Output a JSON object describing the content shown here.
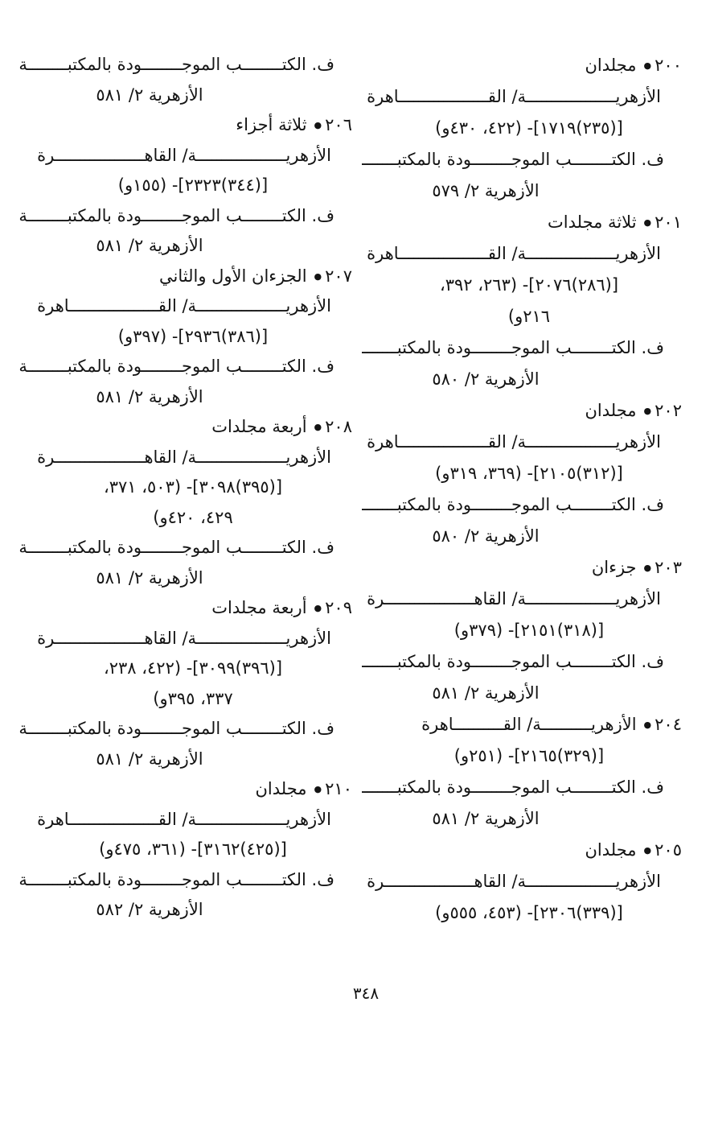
{
  "document": {
    "kind": "scanned-arabic-catalog-page",
    "page_number": "٣٤٨",
    "bullet": "●",
    "text_color": "#141414",
    "background_color": "#ffffff"
  },
  "columns": [
    {
      "id": "right",
      "entries": [
        {
          "number": "٢٠٠",
          "title": "مجلدان",
          "lines": [
            {
              "type": "src",
              "text": "الأزهريــــــــــــــــــة/ القــــــــــــــــــاهرة"
            },
            {
              "type": "ref",
              "text": "[(٢٣٥)١٧١٩]- (٤٢٢، ٤٣٠و)"
            },
            {
              "type": "fn",
              "text": "ف. الكتــــــــب الموجــــــــودة بالمكتبــــــــة"
            },
            {
              "type": "loc",
              "text": "الأزهرية ٢/ ٥٧٩"
            }
          ]
        },
        {
          "number": "٢٠١",
          "title": "ثلاثة مجلدات",
          "lines": [
            {
              "type": "src",
              "text": "الأزهريــــــــــــــــــة/ القــــــــــــــــــاهرة"
            },
            {
              "type": "ref",
              "text": "[(٢٨٦)٢٠٧٦]- (٢٦٣،   ٣٩٢،"
            },
            {
              "type": "ref",
              "text": "٢١٦و)"
            },
            {
              "type": "fn",
              "text": "ف. الكتــــــــب الموجــــــــودة بالمكتبــــــــة"
            },
            {
              "type": "loc",
              "text": "الأزهرية ٢/ ٥٨٠"
            }
          ]
        },
        {
          "number": "٢٠٢",
          "title": "مجلدان",
          "lines": [
            {
              "type": "src",
              "text": "الأزهريــــــــــــــــــة/ القــــــــــــــــــاهرة"
            },
            {
              "type": "ref",
              "text": "[(٣١٢)٢١٠٥]- (٣٦٩، ٣١٩و)"
            },
            {
              "type": "fn",
              "text": "ف. الكتــــــــب الموجــــــــودة بالمكتبــــــــة"
            },
            {
              "type": "loc",
              "text": "الأزهرية ٢/ ٥٨٠"
            }
          ]
        },
        {
          "number": "٢٠٣",
          "title": "جزءان",
          "lines": [
            {
              "type": "src",
              "text": "الأزهريــــــــــــــــــة/ القاهــــــــــــــــــرة"
            },
            {
              "type": "ref",
              "text": "[(٣١٨)٢١٥١]- (٣٧٩و)"
            },
            {
              "type": "fn",
              "text": "ف. الكتــــــــب الموجــــــــودة بالمكتبــــــــة"
            },
            {
              "type": "loc",
              "text": "الأزهرية ٢/ ٥٨١"
            }
          ]
        },
        {
          "number": "٢٠٤",
          "title": "الأزهريــــــــــة/ القــــــــــاهرة",
          "lines": [
            {
              "type": "ref",
              "text": "[(٣٢٩)٢١٦٥]- (٢٥١و)"
            },
            {
              "type": "fn",
              "text": "ف. الكتــــــــب الموجــــــــودة بالمكتبــــــــة"
            },
            {
              "type": "loc",
              "text": "الأزهرية ٢/ ٥٨١"
            }
          ]
        },
        {
          "number": "٢٠٥",
          "title": "مجلدان",
          "lines": [
            {
              "type": "src",
              "text": "الأزهريــــــــــــــــــة/ القاهــــــــــــــــــرة"
            },
            {
              "type": "ref",
              "text": "[(٣٣٩)٢٣٠٦]- (٤٥٣، ٥٥٥و)"
            }
          ]
        }
      ]
    },
    {
      "id": "left",
      "entries": [
        {
          "number": "",
          "title": "",
          "lines": [
            {
              "type": "fn",
              "text": "ف. الكتــــــــب الموجــــــــودة بالمكتبــــــــة"
            },
            {
              "type": "loc",
              "text": "الأزهرية ٢/ ٥٨١"
            }
          ]
        },
        {
          "number": "٢٠٦",
          "title": "ثلاثة أجزاء",
          "lines": [
            {
              "type": "src",
              "text": "الأزهريــــــــــــــــــة/ القاهــــــــــــــــــرة"
            },
            {
              "type": "ref",
              "text": "[(٣٤٤)٢٣٢٣]- (١٥٥و)"
            },
            {
              "type": "fn",
              "text": "ف. الكتــــــــب الموجــــــــودة بالمكتبــــــــة"
            },
            {
              "type": "loc",
              "text": "الأزهرية ٢/ ٥٨١"
            }
          ]
        },
        {
          "number": "٢٠٧",
          "title": "الجزءان الأول والثاني",
          "lines": [
            {
              "type": "src",
              "text": "الأزهريــــــــــــــــــة/ القــــــــــــــــــاهرة"
            },
            {
              "type": "ref",
              "text": "[(٣٨٦)٢٩٣٦]- (٣٩٧و)"
            },
            {
              "type": "fn",
              "text": "ف. الكتــــــــب الموجــــــــودة بالمكتبــــــــة"
            },
            {
              "type": "loc",
              "text": "الأزهرية ٢/ ٥٨١"
            }
          ]
        },
        {
          "number": "٢٠٨",
          "title": "أربعة مجلدات",
          "lines": [
            {
              "type": "src",
              "text": "الأزهريــــــــــــــــــة/ القاهــــــــــــــــــرة"
            },
            {
              "type": "ref",
              "text": "[(٣٩٥)٣٠٩٨]- (٥٠٣،  ٣٧١،"
            },
            {
              "type": "ref",
              "text": "٤٢٩، ٤٢٠و)"
            },
            {
              "type": "fn",
              "text": "ف. الكتــــــــب الموجــــــــودة بالمكتبــــــــة"
            },
            {
              "type": "loc",
              "text": "الأزهرية ٢/ ٥٨١"
            }
          ]
        },
        {
          "number": "٢٠٩",
          "title": "أربعة مجلدات",
          "lines": [
            {
              "type": "src",
              "text": "الأزهريــــــــــــــــــة/ القاهــــــــــــــــــرة"
            },
            {
              "type": "ref",
              "text": "[(٣٩٦)٣٠٩٩]- (٤٢٢،  ٢٣٨،"
            },
            {
              "type": "ref",
              "text": "٣٣٧، ٣٩٥و)"
            },
            {
              "type": "fn",
              "text": "ف. الكتــــــــب الموجــــــــودة بالمكتبــــــــة"
            },
            {
              "type": "loc",
              "text": "الأزهرية ٢/ ٥٨١"
            }
          ]
        },
        {
          "number": "٢١٠",
          "title": "مجلدان",
          "lines": [
            {
              "type": "src",
              "text": "الأزهريــــــــــــــــــة/ القــــــــــــــــــاهرة"
            },
            {
              "type": "ref",
              "text": "[(٤٢٥)٣١٦٢]- (٣٦١، ٤٧٥و)"
            },
            {
              "type": "fn",
              "text": "ف. الكتــــــــب الموجــــــــودة بالمكتبــــــــة"
            },
            {
              "type": "loc",
              "text": "الأزهرية ٢/ ٥٨٢"
            }
          ]
        }
      ]
    }
  ]
}
